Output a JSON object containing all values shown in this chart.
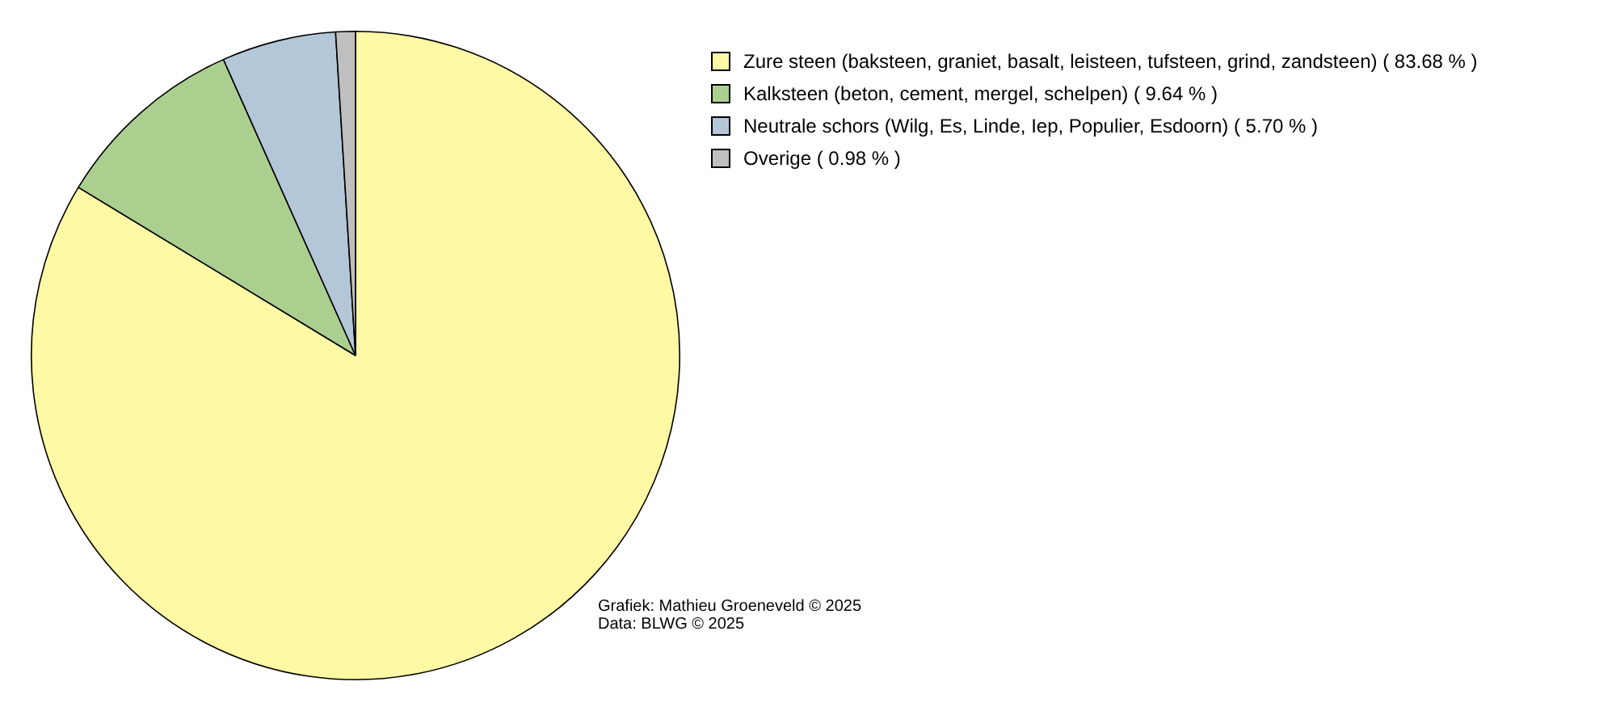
{
  "chart_data": {
    "type": "pie",
    "categories": [
      "Zure steen (baksteen, graniet, basalt, leisteen, tufsteen, grind, zandsteen)",
      "Kalksteen (beton, cement, mergel, schelpen)",
      "Neutrale schors (Wilg, Es, Linde, Iep, Populier, Esdoorn)",
      "Overige"
    ],
    "values": [
      83.68,
      9.64,
      5.7,
      0.98
    ],
    "value_labels": [
      "( 83.68 % )",
      "( 9.64 % )",
      "( 5.70 % )",
      "( 0.98 % )"
    ],
    "colors": [
      "#fff8a5",
      "#abcf8f",
      "#b3c7d9",
      "#bfbfbf"
    ],
    "legend": "right",
    "annotations": [
      "Grafiek: Mathieu Groeneveld © 2025",
      "Data: BLWG © 2025"
    ]
  }
}
